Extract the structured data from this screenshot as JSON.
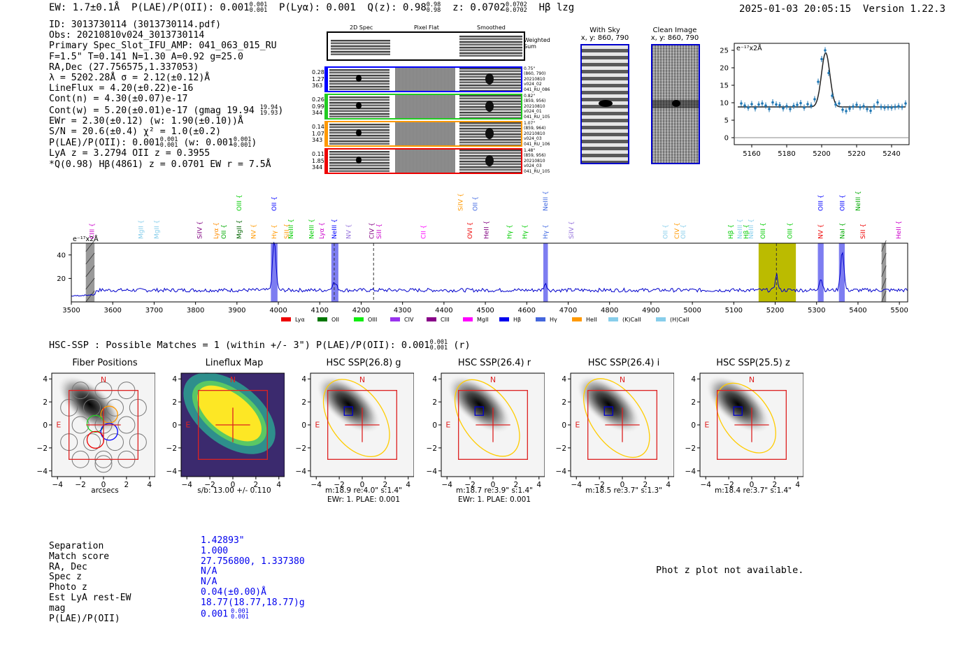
{
  "header": {
    "ew": "EW: 1.7±0.1Å",
    "plae_label": "P(LAE)/P(OII): 0.001",
    "plae_hi": "0.001",
    "plae_lo": "0.001",
    "plya": "P(Lyα): 0.001",
    "qz_label": "Q(z): 0.98",
    "qz_hi": "0.98",
    "qz_lo": "0.98",
    "z_label": "z: 0.0702",
    "z_hi": "0.0702",
    "z_lo": "0.0702",
    "line_id": "Hβ  lzg",
    "timestamp": "2025-01-03 20:05:15",
    "version": "Version 1.22.3"
  },
  "info": {
    "id": "ID: 3013730114 (3013730114.pdf)",
    "obs": "Obs: 20210810v024_3013730114",
    "primary": "Primary Spec_Slot_IFU_AMP: 041_063_015_RU",
    "fibers": "F=1.5\"  T=0.141  N=1.30  A=0.92  g=25.0",
    "radec": "RA,Dec (27.756575,1.337053)",
    "lambda": "λ = 5202.28Å  σ = 2.12(±0.12)Å",
    "lineflux": "LineFlux = 4.20(±0.22)e-16",
    "cont_n": "Cont(n) = 4.30(±0.07)e-17",
    "cont_w": "Cont(w) = 5.20(±0.01)e-17 (gmag 19.94",
    "cont_w_hi": "19.94",
    "cont_w_lo": "19.93",
    "cont_w_end": ")",
    "ewr": "EWr = 2.30(±0.12) (w: 1.90(±0.10))Å",
    "sn": "S/N = 20.6(±0.4)  χ² = 1.0(±0.2)",
    "plae": "P(LAE)/P(OII): 0.001",
    "plae_hi": "0.001",
    "plae_lo": "0.001",
    "plae_w": "(w: 0.001",
    "plae_w_hi": "0.001",
    "plae_w_lo": "0.001",
    "plae_w_end": ")",
    "lya": "LyA z = 3.2794  OII z = 0.3955",
    "q": "*Q(0.98) Hβ(4861) z = 0.0701  EW r = 7.5Å"
  },
  "twod": {
    "col_2d": "2D Spec",
    "col_flat": "Pixel Flat",
    "col_smooth": "Smoothed",
    "weighted": "Weighted Sum",
    "rows": [
      {
        "v1": "0.28",
        "v2": "1.27",
        "v3": "363",
        "sep": "0.75\"",
        "xy": "(860, 790)",
        "d1": "20210810",
        "d2": "v024_02",
        "d3": "041_RU_086",
        "color": "#0000ff"
      },
      {
        "v1": "0.26",
        "v2": "0.99",
        "v3": "344",
        "sep": "0.82\"",
        "xy": "(859, 956)",
        "d1": "20210810",
        "d2": "v024_01",
        "d3": "041_RU_105",
        "color": "#22cc22"
      },
      {
        "v1": "0.14",
        "v2": "1.07",
        "v3": "343",
        "sep": "1.07\"",
        "xy": "(859, 964)",
        "d1": "20210810",
        "d2": "v024_03",
        "d3": "041_RU_106",
        "color": "#ff9900"
      },
      {
        "v1": "0.11",
        "v2": "1.85",
        "v3": "344",
        "sep": "1.48\"",
        "xy": "(859, 956)",
        "d1": "20210810",
        "d2": "v024_03",
        "d3": "041_RU_105",
        "color": "#ee0000"
      }
    ]
  },
  "sky": {
    "with_sky_title": "With Sky",
    "with_sky_xy": "x, y: 860, 790",
    "clean_title": "Clean Image",
    "clean_xy": "x, y: 860, 790"
  },
  "zoom_chart": {
    "type": "scatter",
    "unit_label": "e⁻¹⁷x2Å",
    "xlim": [
      5150,
      5250
    ],
    "ylim": [
      -2,
      27
    ],
    "xticks": [
      5160,
      5180,
      5200,
      5220,
      5240
    ],
    "yticks": [
      0,
      5,
      10,
      15,
      20,
      25
    ],
    "points_x": [
      5154,
      5156,
      5158,
      5160,
      5162,
      5164,
      5166,
      5168,
      5170,
      5172,
      5174,
      5176,
      5178,
      5180,
      5182,
      5184,
      5186,
      5188,
      5190,
      5192,
      5194,
      5196,
      5198,
      5200,
      5202,
      5204,
      5206,
      5208,
      5210,
      5212,
      5214,
      5216,
      5218,
      5220,
      5222,
      5224,
      5226,
      5228,
      5230,
      5232,
      5234,
      5236,
      5238,
      5240,
      5242,
      5244,
      5246,
      5248
    ],
    "points_y": [
      9.8,
      9.2,
      8.6,
      9.6,
      8.4,
      9.5,
      9.8,
      9.2,
      8.2,
      10.1,
      9.5,
      9.3,
      8.4,
      9.0,
      8.2,
      9.1,
      9.4,
      9.9,
      8.6,
      9.6,
      9.2,
      11.0,
      16.0,
      22.5,
      25.0,
      18.5,
      12.0,
      9.5,
      9.8,
      8.0,
      7.6,
      8.3,
      8.9,
      9.4,
      8.7,
      9.0,
      8.2,
      7.7,
      8.9,
      10.1,
      8.8,
      8.6,
      8.7,
      8.6,
      8.8,
      9.0,
      8.8,
      9.8
    ],
    "fit": {
      "center": 5202.28,
      "sigma": 2.4,
      "amplitude": 15.5,
      "baseline": 8.8
    }
  },
  "spectrum_chart": {
    "type": "line",
    "unit_label": "e⁻¹⁷x2Å",
    "xlim": [
      3500,
      5520
    ],
    "ylim": [
      0,
      50
    ],
    "xticks": [
      3500,
      3600,
      3700,
      3800,
      3900,
      4000,
      4100,
      4200,
      4300,
      4400,
      4500,
      4600,
      4700,
      4800,
      4900,
      5000,
      5100,
      5200,
      5300,
      5400,
      5500
    ],
    "yticks": [
      20,
      40
    ],
    "peaks": [
      {
        "x": 3990,
        "h": 42,
        "w": 4
      },
      {
        "x": 4135,
        "h": 6,
        "w": 6
      },
      {
        "x": 4645,
        "h": 5,
        "w": 4
      },
      {
        "x": 5203,
        "h": 14,
        "w": 3
      },
      {
        "x": 5310,
        "h": 10,
        "w": 4
      },
      {
        "x": 5362,
        "h": 34,
        "w": 4
      }
    ],
    "baseline": 10,
    "blue_bands": [
      [
        3982,
        3998
      ],
      [
        4128,
        4145
      ],
      [
        4640,
        4651
      ],
      [
        5303,
        5317
      ],
      [
        5354,
        5368
      ]
    ],
    "yellow_band": [
      5160,
      5250
    ],
    "gray_bands": [
      [
        3535,
        3556
      ],
      [
        5457,
        5468
      ]
    ],
    "dashed": [
      4135,
      4230,
      5203
    ],
    "line_labels": [
      {
        "x": 3550,
        "t": "CIII",
        "c": "#cc00cc",
        "row": 1
      },
      {
        "x": 3668,
        "t": "MgII",
        "c": "#87ceeb",
        "row": 1
      },
      {
        "x": 3706,
        "t": "MgII",
        "c": "#87ceeb",
        "row": 1
      },
      {
        "x": 3810,
        "t": "SiIV",
        "c": "#800080",
        "row": 1
      },
      {
        "x": 3850,
        "t": "Lyα",
        "c": "#ff8c00",
        "row": 1
      },
      {
        "x": 3868,
        "t": "OII",
        "c": "#00aa00",
        "row": 1
      },
      {
        "x": 3905,
        "t": "MgII",
        "c": "#006400",
        "row": 1
      },
      {
        "x": 3940,
        "t": "NV",
        "c": "#ff9900",
        "row": 1
      },
      {
        "x": 3990,
        "t": "Hγ",
        "c": "#ff9900",
        "row": 1
      },
      {
        "x": 4020,
        "t": "SiII",
        "c": "#ff9900",
        "row": 1
      },
      {
        "x": 4030,
        "t": "NeIII",
        "c": "#00cc00",
        "row": 1
      },
      {
        "x": 4080,
        "t": "NeIII",
        "c": "#00cc00",
        "row": 1
      },
      {
        "x": 4105,
        "t": "Lyα",
        "c": "#cc00cc",
        "row": 1
      },
      {
        "x": 4135,
        "t": "NeIII",
        "c": "#0000ff",
        "row": 1
      },
      {
        "x": 4170,
        "t": "NV",
        "c": "#9370db",
        "row": 1
      },
      {
        "x": 4225,
        "t": "CIV",
        "c": "#800080",
        "row": 1
      },
      {
        "x": 4243,
        "t": "SiII",
        "c": "#cc00cc",
        "row": 1
      },
      {
        "x": 4350,
        "t": "CII",
        "c": "#ff00ff",
        "row": 1
      },
      {
        "x": 4463,
        "t": "OVI",
        "c": "#ee0000",
        "row": 1
      },
      {
        "x": 4502,
        "t": "HeII",
        "c": "#800080",
        "row": 1
      },
      {
        "x": 4558,
        "t": "Hγ",
        "c": "#00cc00",
        "row": 1
      },
      {
        "x": 4595,
        "t": "Hγ",
        "c": "#00cc00",
        "row": 1
      },
      {
        "x": 4645,
        "t": "Hγ",
        "c": "#4169e1",
        "row": 1
      },
      {
        "x": 4708,
        "t": "SiIV",
        "c": "#9370db",
        "row": 1
      },
      {
        "x": 4935,
        "t": "OII",
        "c": "#87ceeb",
        "row": 1
      },
      {
        "x": 4963,
        "t": "CIV",
        "c": "#ff9900",
        "row": 1
      },
      {
        "x": 4978,
        "t": "OII",
        "c": "#87ceeb",
        "row": 1
      },
      {
        "x": 5093,
        "t": "Hβ",
        "c": "#00cc00",
        "row": 1
      },
      {
        "x": 5115,
        "t": "NeIII",
        "c": "#87ceeb",
        "row": 1
      },
      {
        "x": 5130,
        "t": "Hβ",
        "c": "#00cc00",
        "row": 1
      },
      {
        "x": 5142,
        "t": "NeIII",
        "c": "#87ceeb",
        "row": 1
      },
      {
        "x": 5170,
        "t": "OIII",
        "c": "#00cc00",
        "row": 1
      },
      {
        "x": 5235,
        "t": "OIII",
        "c": "#00cc00",
        "row": 1
      },
      {
        "x": 5310,
        "t": "NV",
        "c": "#ee0000",
        "row": 1
      },
      {
        "x": 5362,
        "t": "NaI",
        "c": "#00aa00",
        "row": 1
      },
      {
        "x": 5412,
        "t": "SiII",
        "c": "#ee0000",
        "row": 1
      },
      {
        "x": 5498,
        "t": "HeII",
        "c": "#cc00cc",
        "row": 1
      },
      {
        "x": 3905,
        "t": "OIII",
        "c": "#00cc00",
        "row": 2
      },
      {
        "x": 3990,
        "t": "OII",
        "c": "#0000ff",
        "row": 2
      },
      {
        "x": 4440,
        "t": "SiIV",
        "c": "#ff9900",
        "row": 2
      },
      {
        "x": 4475,
        "t": "OII",
        "c": "#4169e1",
        "row": 2
      },
      {
        "x": 4645,
        "t": "NeIII",
        "c": "#4169e1",
        "row": 2
      },
      {
        "x": 5310,
        "t": "OIII",
        "c": "#0000ff",
        "row": 2
      },
      {
        "x": 5362,
        "t": "OIII",
        "c": "#0000ff",
        "row": 2
      },
      {
        "x": 5400,
        "t": "NeIII",
        "c": "#00aa00",
        "row": 2
      }
    ],
    "legend": [
      {
        "label": "Lyα",
        "color": "#ee0000"
      },
      {
        "label": "OII",
        "color": "#007700"
      },
      {
        "label": "OIII",
        "color": "#11ee11"
      },
      {
        "label": "CIV",
        "color": "#9933ee"
      },
      {
        "label": "CIII",
        "color": "#880088"
      },
      {
        "label": "MgII",
        "color": "#ff00ff"
      },
      {
        "label": "Hβ",
        "color": "#0000ee"
      },
      {
        "label": "Hγ",
        "color": "#4466dd"
      },
      {
        "label": "HeII",
        "color": "#ff9900"
      },
      {
        "label": "(K)CaII",
        "color": "#87ceeb"
      },
      {
        "label": "(H)CaII",
        "color": "#87ceeb"
      }
    ]
  },
  "hsc": {
    "title_line": "HSC-SSP : Possible Matches = 1 (within +/- 3\")  P(LAE)/P(OII): 0.001",
    "title_hi": "0.001",
    "title_lo": "0.001",
    "title_end": "(r)",
    "cutouts": [
      {
        "title": "Fiber Positions",
        "cap1": "arcsecs",
        "cap2": ""
      },
      {
        "title": "Lineflux Map",
        "cap1": "s/b: 13.00 +/- 0.110",
        "cap2": ""
      },
      {
        "title": "HSC SSP(26.8) g",
        "cap1": "m:18.9  re:4.0\"  s:1.4\"",
        "cap2": "EWr: 1. PLAE: 0.001"
      },
      {
        "title": "HSC SSP(26.4) r",
        "cap1": "m:18.7  re:3.9\"  s:1.4\"",
        "cap2": "EWr: 1. PLAE: 0.001"
      },
      {
        "title": "HSC SSP(26.4) i",
        "cap1": "m:18.5  re:3.7\"  s:1.3\"",
        "cap2": ""
      },
      {
        "title": "HSC SSP(25.5) z",
        "cap1": "m:18.4  re:3.7\"  s:1.4\"",
        "cap2": ""
      }
    ],
    "tick_labels": [
      "−4",
      "−2",
      "0",
      "2",
      "4"
    ],
    "north": "N",
    "east": "E"
  },
  "match": {
    "labels": [
      "Separation",
      "Match score",
      "RA, Dec",
      "Spec z",
      "Photo z",
      "Est LyA rest-EW",
      "mag",
      "P(LAE)/P(OII)"
    ],
    "values": [
      "1.42893\"",
      "1.000",
      "27.756800, 1.337380",
      "N/A",
      "N/A",
      "0.04(±0.00)Å",
      "18.77(18.77,18.77)g",
      "0.001"
    ],
    "plae_hi": "0.001",
    "plae_lo": "0.001"
  },
  "photz": {
    "message": "Phot z plot not available."
  },
  "colors": {
    "spectrum_line": "#0000cc",
    "band_blue": "#6666ee",
    "band_yellow": "#bbbb00",
    "cross": "#dd2222",
    "ellipse": "#ffcc00"
  }
}
